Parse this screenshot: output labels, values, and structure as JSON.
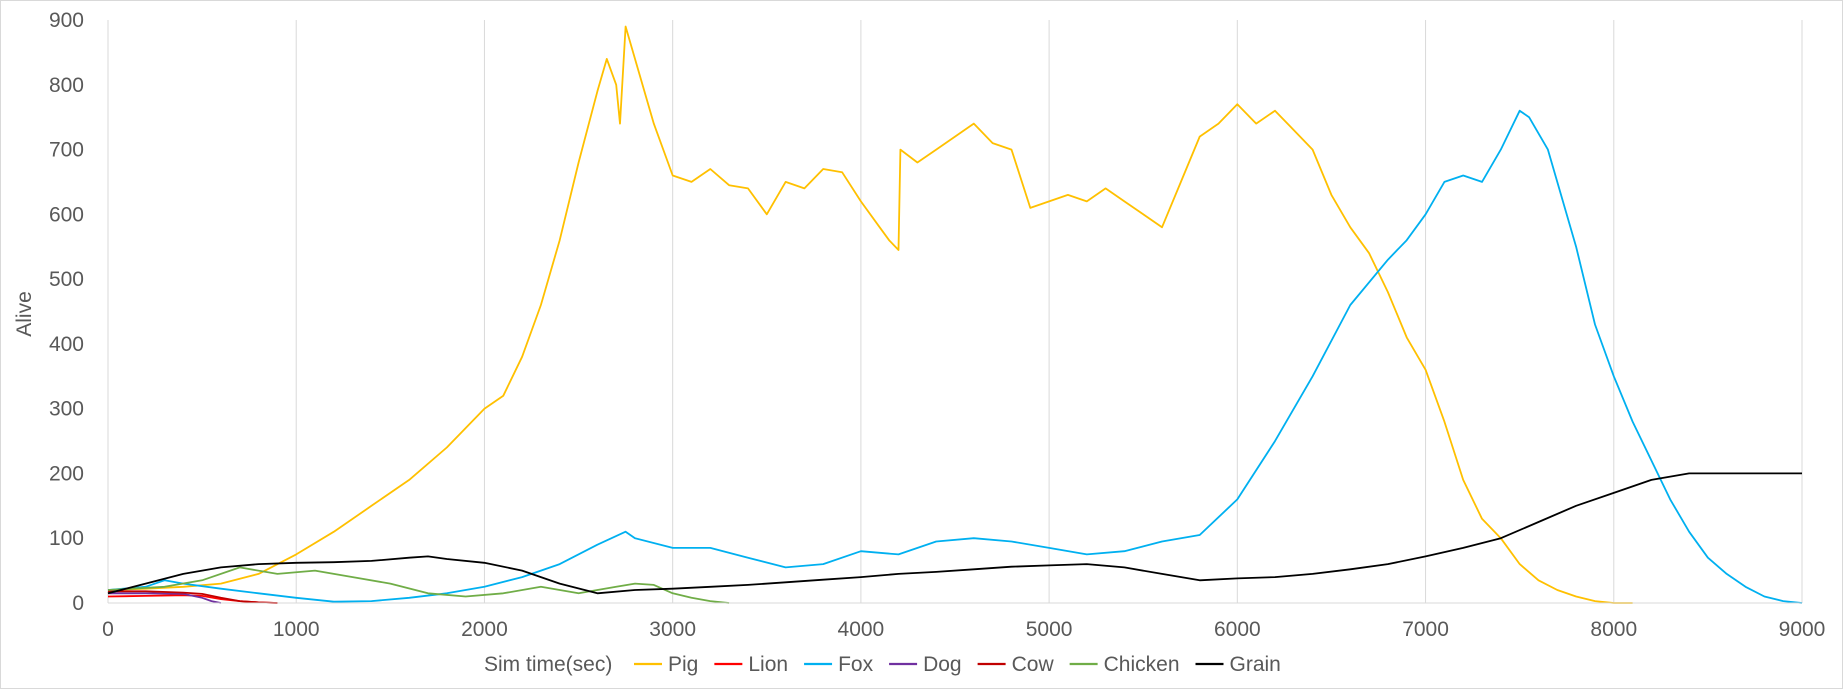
{
  "chart_data": {
    "type": "line",
    "title": "",
    "xlabel": "Sim time(sec)",
    "ylabel": "Alive",
    "xlim": [
      0,
      9000
    ],
    "ylim": [
      0,
      900
    ],
    "x_ticks": [
      0,
      1000,
      2000,
      3000,
      4000,
      5000,
      6000,
      7000,
      8000,
      9000
    ],
    "y_ticks": [
      0,
      100,
      200,
      300,
      400,
      500,
      600,
      700,
      800,
      900
    ],
    "grid": "vertical",
    "legend_position": "bottom",
    "series": [
      {
        "name": "Pig",
        "color": "#FFC000",
        "points": [
          [
            0,
            20
          ],
          [
            200,
            22
          ],
          [
            400,
            25
          ],
          [
            600,
            30
          ],
          [
            800,
            45
          ],
          [
            1000,
            75
          ],
          [
            1200,
            110
          ],
          [
            1400,
            150
          ],
          [
            1600,
            190
          ],
          [
            1800,
            240
          ],
          [
            2000,
            300
          ],
          [
            2100,
            320
          ],
          [
            2200,
            380
          ],
          [
            2300,
            460
          ],
          [
            2400,
            560
          ],
          [
            2500,
            680
          ],
          [
            2600,
            790
          ],
          [
            2650,
            840
          ],
          [
            2700,
            800
          ],
          [
            2720,
            740
          ],
          [
            2750,
            890
          ],
          [
            2800,
            840
          ],
          [
            2900,
            740
          ],
          [
            3000,
            660
          ],
          [
            3100,
            650
          ],
          [
            3200,
            670
          ],
          [
            3300,
            645
          ],
          [
            3400,
            640
          ],
          [
            3500,
            600
          ],
          [
            3600,
            650
          ],
          [
            3700,
            640
          ],
          [
            3800,
            670
          ],
          [
            3900,
            665
          ],
          [
            4000,
            620
          ],
          [
            4100,
            580
          ],
          [
            4150,
            560
          ],
          [
            4200,
            545
          ],
          [
            4210,
            700
          ],
          [
            4300,
            680
          ],
          [
            4400,
            700
          ],
          [
            4500,
            720
          ],
          [
            4600,
            740
          ],
          [
            4700,
            710
          ],
          [
            4800,
            700
          ],
          [
            4900,
            610
          ],
          [
            5000,
            620
          ],
          [
            5100,
            630
          ],
          [
            5200,
            620
          ],
          [
            5300,
            640
          ],
          [
            5400,
            620
          ],
          [
            5500,
            600
          ],
          [
            5600,
            580
          ],
          [
            5700,
            650
          ],
          [
            5800,
            720
          ],
          [
            5900,
            740
          ],
          [
            6000,
            770
          ],
          [
            6100,
            740
          ],
          [
            6200,
            760
          ],
          [
            6300,
            730
          ],
          [
            6400,
            700
          ],
          [
            6500,
            630
          ],
          [
            6600,
            580
          ],
          [
            6700,
            540
          ],
          [
            6800,
            480
          ],
          [
            6900,
            410
          ],
          [
            7000,
            360
          ],
          [
            7100,
            280
          ],
          [
            7200,
            190
          ],
          [
            7300,
            130
          ],
          [
            7400,
            100
          ],
          [
            7500,
            60
          ],
          [
            7600,
            35
          ],
          [
            7700,
            20
          ],
          [
            7800,
            10
          ],
          [
            7900,
            3
          ],
          [
            8000,
            0
          ],
          [
            8100,
            0
          ]
        ]
      },
      {
        "name": "Lion",
        "color": "#FF0000",
        "points": [
          [
            0,
            10
          ],
          [
            200,
            11
          ],
          [
            400,
            12
          ],
          [
            500,
            11
          ],
          [
            600,
            6
          ],
          [
            700,
            3
          ],
          [
            800,
            1
          ],
          [
            900,
            0
          ]
        ]
      },
      {
        "name": "Fox",
        "color": "#00B0F0",
        "points": [
          [
            0,
            20
          ],
          [
            200,
            25
          ],
          [
            300,
            35
          ],
          [
            400,
            30
          ],
          [
            600,
            22
          ],
          [
            800,
            15
          ],
          [
            1000,
            8
          ],
          [
            1200,
            2
          ],
          [
            1400,
            3
          ],
          [
            1600,
            8
          ],
          [
            1800,
            15
          ],
          [
            2000,
            25
          ],
          [
            2200,
            40
          ],
          [
            2400,
            60
          ],
          [
            2600,
            90
          ],
          [
            2750,
            110
          ],
          [
            2800,
            100
          ],
          [
            3000,
            85
          ],
          [
            3200,
            85
          ],
          [
            3400,
            70
          ],
          [
            3600,
            55
          ],
          [
            3800,
            60
          ],
          [
            4000,
            80
          ],
          [
            4200,
            75
          ],
          [
            4400,
            95
          ],
          [
            4600,
            100
          ],
          [
            4800,
            95
          ],
          [
            5000,
            85
          ],
          [
            5200,
            75
          ],
          [
            5400,
            80
          ],
          [
            5600,
            95
          ],
          [
            5800,
            105
          ],
          [
            6000,
            160
          ],
          [
            6200,
            250
          ],
          [
            6400,
            350
          ],
          [
            6600,
            460
          ],
          [
            6800,
            530
          ],
          [
            6900,
            560
          ],
          [
            7000,
            600
          ],
          [
            7100,
            650
          ],
          [
            7200,
            660
          ],
          [
            7300,
            650
          ],
          [
            7400,
            700
          ],
          [
            7500,
            760
          ],
          [
            7550,
            750
          ],
          [
            7650,
            700
          ],
          [
            7800,
            550
          ],
          [
            7900,
            430
          ],
          [
            8000,
            350
          ],
          [
            8100,
            280
          ],
          [
            8200,
            220
          ],
          [
            8300,
            160
          ],
          [
            8400,
            110
          ],
          [
            8500,
            70
          ],
          [
            8600,
            45
          ],
          [
            8700,
            25
          ],
          [
            8800,
            10
          ],
          [
            8900,
            3
          ],
          [
            9000,
            0
          ]
        ]
      },
      {
        "name": "Dog",
        "color": "#7030A0",
        "points": [
          [
            0,
            15
          ],
          [
            200,
            15
          ],
          [
            400,
            14
          ],
          [
            500,
            8
          ],
          [
            550,
            3
          ],
          [
            600,
            0
          ]
        ]
      },
      {
        "name": "Cow",
        "color": "#C00000",
        "points": [
          [
            0,
            18
          ],
          [
            200,
            18
          ],
          [
            400,
            16
          ],
          [
            500,
            14
          ],
          [
            600,
            8
          ],
          [
            700,
            3
          ],
          [
            800,
            1
          ],
          [
            900,
            0
          ]
        ]
      },
      {
        "name": "Chicken",
        "color": "#70AD47",
        "points": [
          [
            0,
            20
          ],
          [
            300,
            25
          ],
          [
            500,
            35
          ],
          [
            700,
            55
          ],
          [
            900,
            45
          ],
          [
            1100,
            50
          ],
          [
            1300,
            40
          ],
          [
            1500,
            30
          ],
          [
            1700,
            15
          ],
          [
            1900,
            10
          ],
          [
            2100,
            15
          ],
          [
            2300,
            25
          ],
          [
            2500,
            15
          ],
          [
            2700,
            25
          ],
          [
            2800,
            30
          ],
          [
            2900,
            28
          ],
          [
            3000,
            15
          ],
          [
            3100,
            8
          ],
          [
            3200,
            3
          ],
          [
            3300,
            0
          ]
        ]
      },
      {
        "name": "Grain",
        "color": "#000000",
        "points": [
          [
            0,
            15
          ],
          [
            200,
            30
          ],
          [
            400,
            45
          ],
          [
            600,
            55
          ],
          [
            800,
            60
          ],
          [
            1000,
            62
          ],
          [
            1200,
            63
          ],
          [
            1400,
            65
          ],
          [
            1600,
            70
          ],
          [
            1700,
            72
          ],
          [
            1800,
            68
          ],
          [
            2000,
            62
          ],
          [
            2200,
            50
          ],
          [
            2400,
            30
          ],
          [
            2600,
            15
          ],
          [
            2800,
            20
          ],
          [
            3000,
            22
          ],
          [
            3200,
            25
          ],
          [
            3400,
            28
          ],
          [
            3600,
            32
          ],
          [
            3800,
            36
          ],
          [
            4000,
            40
          ],
          [
            4200,
            45
          ],
          [
            4400,
            48
          ],
          [
            4600,
            52
          ],
          [
            4800,
            56
          ],
          [
            5000,
            58
          ],
          [
            5200,
            60
          ],
          [
            5400,
            55
          ],
          [
            5600,
            45
          ],
          [
            5800,
            35
          ],
          [
            6000,
            38
          ],
          [
            6200,
            40
          ],
          [
            6400,
            45
          ],
          [
            6600,
            52
          ],
          [
            6800,
            60
          ],
          [
            7000,
            72
          ],
          [
            7200,
            85
          ],
          [
            7400,
            100
          ],
          [
            7600,
            125
          ],
          [
            7800,
            150
          ],
          [
            8000,
            170
          ],
          [
            8200,
            190
          ],
          [
            8400,
            200
          ],
          [
            8600,
            200
          ],
          [
            8800,
            200
          ],
          [
            9000,
            200
          ]
        ]
      }
    ]
  }
}
